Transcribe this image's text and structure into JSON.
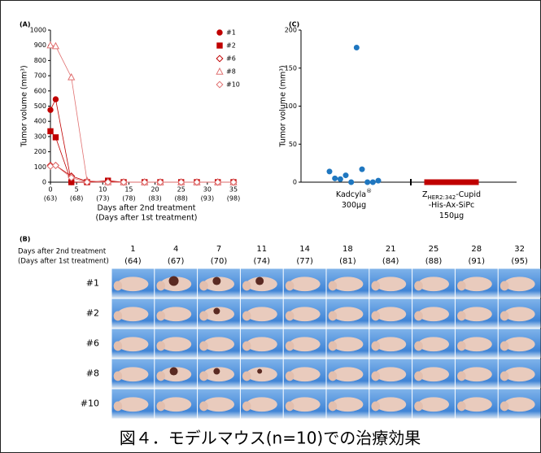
{
  "chart_data": [
    {
      "type": "line",
      "label": "(A)",
      "y_label": "Tumor volume (mm³)",
      "x_label": [
        "Days after 2nd treatment",
        "(Days after 1st treatment)"
      ],
      "x": [
        0,
        1,
        4,
        7,
        11,
        14,
        18,
        21,
        25,
        28,
        32,
        35
      ],
      "xlim": [
        0,
        35
      ],
      "xticks": [
        0,
        5,
        10,
        15,
        20,
        25,
        30,
        35
      ],
      "xtick_sublabels": [
        "(63)",
        "(68)",
        "(73)",
        "(78)",
        "(83)",
        "(88)",
        "(93)",
        "(98)"
      ],
      "ylim": [
        0,
        1000
      ],
      "yticks": [
        0,
        100,
        200,
        300,
        400,
        500,
        600,
        700,
        800,
        900,
        1000
      ],
      "series": [
        {
          "name": "#1",
          "color": "#c00000",
          "marker": "circle",
          "values": [
            475,
            545,
            0,
            0,
            5,
            0,
            0,
            0,
            0,
            0,
            0,
            0
          ]
        },
        {
          "name": "#2",
          "color": "#c00000",
          "marker": "square",
          "values": [
            335,
            295,
            0,
            0,
            10,
            0,
            0,
            0,
            0,
            0,
            0,
            0
          ]
        },
        {
          "name": "#6",
          "color": "#c00000",
          "marker": "diamond-open",
          "values": [
            110,
            110,
            40,
            5,
            0,
            0,
            0,
            0,
            0,
            0,
            0,
            0
          ]
        },
        {
          "name": "#8",
          "color": "#e07070",
          "marker": "triangle-open",
          "values": [
            900,
            895,
            690,
            10,
            0,
            0,
            0,
            0,
            0,
            0,
            0,
            0
          ]
        },
        {
          "name": "#10",
          "color": "#e07070",
          "marker": "diamond-open",
          "values": [
            105,
            110,
            30,
            0,
            0,
            0,
            0,
            0,
            0,
            0,
            0,
            0
          ]
        }
      ]
    },
    {
      "type": "strip",
      "label": "(C)",
      "y_label": "Tumor volume (mm³)",
      "ylim": [
        0,
        200
      ],
      "yticks": [
        0,
        50,
        100,
        150,
        200
      ],
      "groups": [
        {
          "category": [
            [
              {
                "text": "Kadcyla"
              },
              {
                "text": "®",
                "style": "sup"
              }
            ],
            [
              {
                "text": "300µg"
              }
            ]
          ],
          "color": "#1f77c0",
          "marker": "circle",
          "values": [
            14,
            5,
            4,
            9,
            0,
            177,
            17,
            0,
            0,
            2
          ]
        },
        {
          "category": [
            [
              {
                "text": "Z"
              },
              {
                "text": "HER2:342",
                "style": "sub"
              },
              {
                "text": "-Cupid"
              }
            ],
            [
              {
                "text": "-His-Ax-SiPc"
              }
            ],
            [
              {
                "text": "150µg"
              }
            ]
          ],
          "color": "#c00000",
          "marker": "square",
          "values": [
            0,
            0,
            0,
            0,
            0,
            0,
            0,
            0,
            0,
            0
          ]
        }
      ]
    }
  ],
  "panel_b": {
    "label": "(B)",
    "row_header": [
      "Days after 2nd treatment",
      "(Days after 1st treatment)"
    ],
    "days": [
      "1",
      "4",
      "7",
      "11",
      "14",
      "18",
      "21",
      "25",
      "28",
      "32"
    ],
    "days_first": [
      "(64)",
      "(67)",
      "(70)",
      "(74)",
      "(77)",
      "(81)",
      "(84)",
      "(88)",
      "(91)",
      "(95)"
    ],
    "rows": [
      "#1",
      "#2",
      "#6",
      "#8",
      "#10"
    ]
  },
  "caption": "図４．モデルマウス(n=10)での治療効果"
}
